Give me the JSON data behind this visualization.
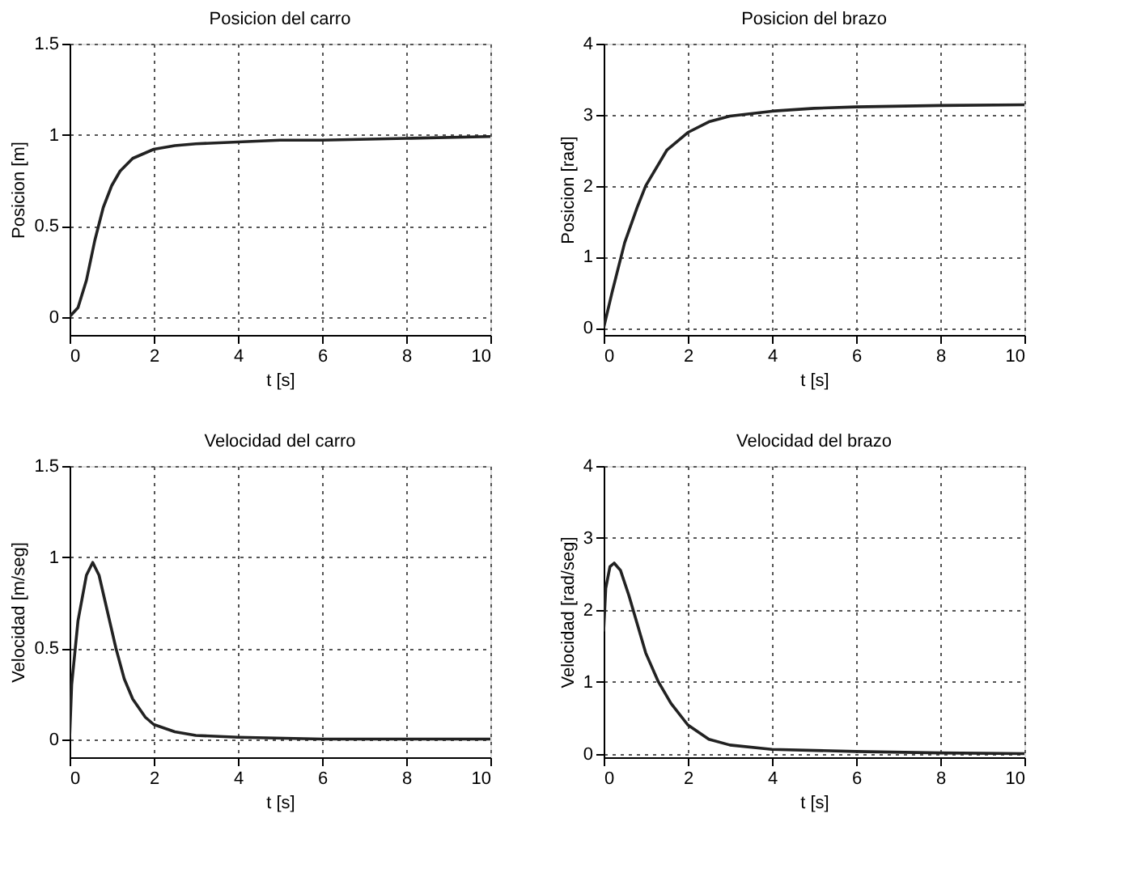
{
  "chart_data": [
    {
      "type": "line",
      "title": "Posicion del carro",
      "xlabel": "t [s]",
      "ylabel": "Posicion [m]",
      "xlim": [
        0,
        10
      ],
      "ylim": [
        -0.1,
        1.5
      ],
      "xticks": [
        0,
        2,
        4,
        6,
        8,
        10
      ],
      "yticks": [
        0,
        0.5,
        1,
        1.5
      ],
      "grid": true,
      "line_style": "solid",
      "marker": "none",
      "series": [
        {
          "color": "#222222",
          "x": [
            0,
            0.2,
            0.4,
            0.6,
            0.8,
            1.0,
            1.2,
            1.5,
            2,
            2.5,
            3,
            4,
            5,
            6,
            8,
            10
          ],
          "values": [
            0,
            0.05,
            0.2,
            0.42,
            0.6,
            0.72,
            0.8,
            0.87,
            0.92,
            0.94,
            0.95,
            0.96,
            0.97,
            0.97,
            0.98,
            0.99
          ]
        }
      ]
    },
    {
      "type": "line",
      "title": "Posicion del brazo",
      "xlabel": "t [s]",
      "ylabel": "Posicion [rad]",
      "xlim": [
        0,
        10
      ],
      "ylim": [
        -0.1,
        4
      ],
      "xticks": [
        0,
        2,
        4,
        6,
        8,
        10
      ],
      "yticks": [
        0,
        1,
        2,
        3,
        4
      ],
      "grid": true,
      "line_style": "solid",
      "marker": "none",
      "series": [
        {
          "color": "#222222",
          "x": [
            0,
            0.2,
            0.5,
            0.8,
            1,
            1.5,
            2,
            2.5,
            3,
            4,
            5,
            6,
            8,
            10
          ],
          "values": [
            0,
            0.5,
            1.2,
            1.7,
            2.0,
            2.5,
            2.75,
            2.9,
            2.98,
            3.05,
            3.09,
            3.11,
            3.13,
            3.14
          ]
        }
      ]
    },
    {
      "type": "line",
      "title": "Velocidad del carro",
      "xlabel": "t [s]",
      "ylabel": "Velocidad [m/seg]",
      "xlim": [
        0,
        10
      ],
      "ylim": [
        -0.1,
        1.5
      ],
      "xticks": [
        0,
        2,
        4,
        6,
        8,
        10
      ],
      "yticks": [
        0,
        0.5,
        1,
        1.5
      ],
      "grid": true,
      "line_style": "solid",
      "marker": "none",
      "series": [
        {
          "color": "#222222",
          "x": [
            0,
            0.05,
            0.2,
            0.4,
            0.55,
            0.7,
            0.9,
            1.1,
            1.3,
            1.5,
            1.8,
            2,
            2.5,
            3,
            4,
            6,
            10
          ],
          "values": [
            0,
            0.3,
            0.65,
            0.9,
            0.97,
            0.9,
            0.7,
            0.5,
            0.33,
            0.22,
            0.12,
            0.08,
            0.04,
            0.02,
            0.01,
            0,
            0
          ]
        }
      ]
    },
    {
      "type": "line",
      "title": "Velocidad del brazo",
      "xlabel": "t [s]",
      "ylabel": "Velocidad [rad/seg]",
      "xlim": [
        0,
        10
      ],
      "ylim": [
        -0.05,
        4
      ],
      "xticks": [
        0,
        2,
        4,
        6,
        8,
        10
      ],
      "yticks": [
        0,
        1,
        2,
        3,
        4
      ],
      "grid": true,
      "line_style": "solid",
      "marker": "none",
      "series": [
        {
          "color": "#222222",
          "x": [
            0,
            0.05,
            0.15,
            0.25,
            0.4,
            0.6,
            0.8,
            1.0,
            1.3,
            1.6,
            2,
            2.5,
            3,
            4,
            6,
            8,
            10
          ],
          "values": [
            1.7,
            2.3,
            2.6,
            2.65,
            2.55,
            2.2,
            1.8,
            1.4,
            1.0,
            0.7,
            0.4,
            0.2,
            0.12,
            0.06,
            0.03,
            0.01,
            0
          ]
        }
      ]
    }
  ]
}
